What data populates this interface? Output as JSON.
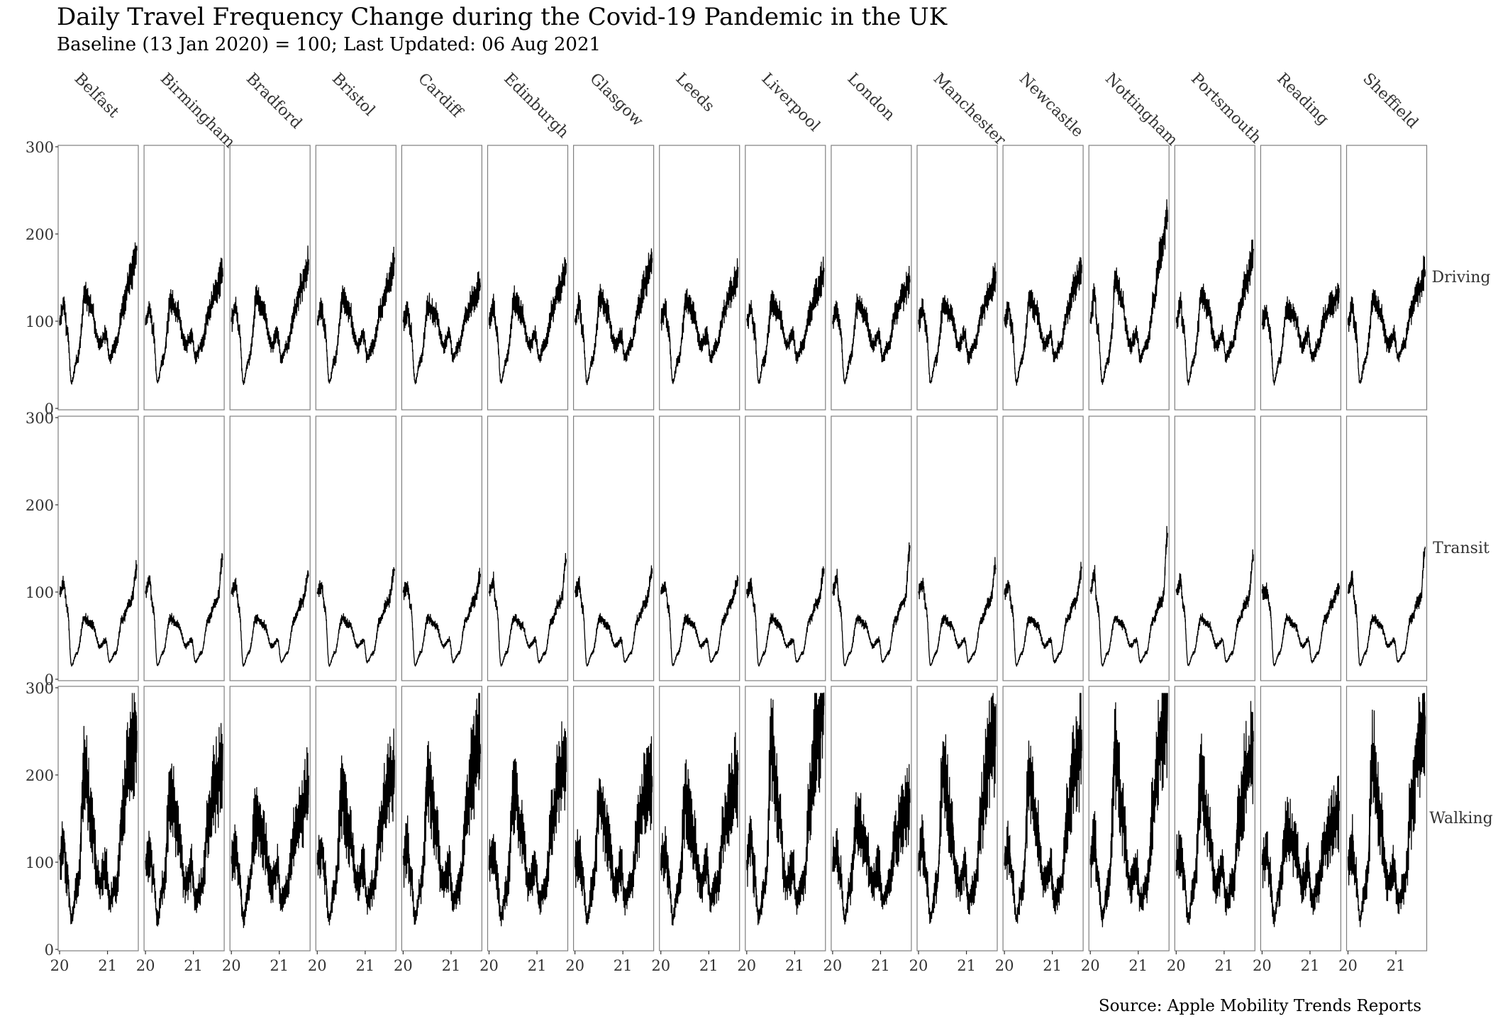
{
  "title": "Daily Travel Frequency Change during the Covid-19 Pandemic in the UK",
  "subtitle": "Baseline (13 Jan 2020) = 100; Last Updated: 06 Aug 2021",
  "caption": "Source: Apple Mobility Trends Reports",
  "chart_data": {
    "type": "line",
    "facets": {
      "columns": [
        "Belfast",
        "Birmingham",
        "Bradford",
        "Bristol",
        "Cardiff",
        "Edinburgh",
        "Glasgow",
        "Leeds",
        "Liverpool",
        "London",
        "Manchester",
        "Newcastle",
        "Nottingham",
        "Portsmouth",
        "Reading",
        "Sheffield"
      ],
      "rows": [
        "Driving",
        "Transit",
        "Walking"
      ]
    },
    "x_range": [
      "2020-01-13",
      "2021-08-06"
    ],
    "x_ticks": [
      {
        "date": "2020-01-01",
        "label": "20"
      },
      {
        "date": "2021-01-01",
        "label": "21"
      }
    ],
    "ylim": [
      0,
      300
    ],
    "y_ticks": [
      0,
      100,
      200,
      300
    ],
    "line_color": "#000000",
    "grid": false,
    "baseline_value": 100,
    "anchor_dates": [
      "2020-01-13",
      "2020-02-15",
      "2020-03-10",
      "2020-04-10",
      "2020-05-20",
      "2020-07-15",
      "2020-09-10",
      "2020-11-05",
      "2020-12-20",
      "2021-01-15",
      "2021-03-01",
      "2021-04-20",
      "2021-06-15",
      "2021-08-06"
    ],
    "series_profiles": {
      "Driving": [
        100,
        108,
        90,
        30,
        55,
        112,
        105,
        72,
        85,
        58,
        72,
        105,
        118,
        130
      ],
      "Transit": [
        100,
        104,
        82,
        16,
        30,
        70,
        62,
        38,
        45,
        20,
        30,
        68,
        88,
        112
      ],
      "Walking": [
        100,
        110,
        85,
        35,
        70,
        150,
        120,
        75,
        95,
        55,
        72,
        125,
        155,
        170
      ]
    },
    "city_peaks": {
      "Belfast": {
        "Driving": 180,
        "Transit": 128,
        "Walking": 250
      },
      "Birmingham": {
        "Driving": 155,
        "Transit": 140,
        "Walking": 215
      },
      "Bradford": {
        "Driving": 165,
        "Transit": 122,
        "Walking": 180
      },
      "Bristol": {
        "Driving": 165,
        "Transit": 124,
        "Walking": 205
      },
      "Cardiff": {
        "Driving": 143,
        "Transit": 120,
        "Walking": 240
      },
      "Edinburgh": {
        "Driving": 160,
        "Transit": 138,
        "Walking": 220
      },
      "Glasgow": {
        "Driving": 172,
        "Transit": 124,
        "Walking": 200
      },
      "Leeds": {
        "Driving": 155,
        "Transit": 114,
        "Walking": 200
      },
      "Liverpool": {
        "Driving": 155,
        "Transit": 124,
        "Walking": 288
      },
      "London": {
        "Driving": 148,
        "Transit": 150,
        "Walking": 168
      },
      "Manchester": {
        "Driving": 150,
        "Transit": 130,
        "Walking": 255
      },
      "Newcastle": {
        "Driving": 163,
        "Transit": 126,
        "Walking": 235
      },
      "Nottingham": {
        "Driving": 222,
        "Transit": 165,
        "Walking": 280
      },
      "Portsmouth": {
        "Driving": 176,
        "Transit": 140,
        "Walking": 230
      },
      "Reading": {
        "Driving": 133,
        "Transit": 104,
        "Walking": 158
      },
      "Sheffield": {
        "Driving": 158,
        "Transit": 148,
        "Walking": 265
      }
    }
  }
}
